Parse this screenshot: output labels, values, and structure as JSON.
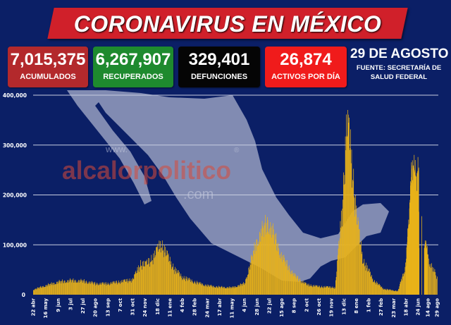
{
  "header": {
    "title": "CORONAVIRUS EN MÉXICO"
  },
  "stats": [
    {
      "value": "7,015,375",
      "label": "ACUMULADOS",
      "color": "#b3292c"
    },
    {
      "value": "6,267,907",
      "label": "RECUPERADOS",
      "color": "#1e8a2e"
    },
    {
      "value": "329,401",
      "label": "DEFUNCIONES",
      "color": "#050505"
    },
    {
      "value": "26,874",
      "label": "ACTIVOS POR DÍA",
      "color": "#f01b1b"
    }
  ],
  "date": {
    "label": "29 DE AGOSTO",
    "source": "FUENTE: SECRETARÍA DE SALUD FEDERAL"
  },
  "watermark": {
    "prefix": "www.",
    "name": "alcalorpolitico",
    "suffix": ".com",
    "mark": "®"
  },
  "colors": {
    "background": "#0b1f66",
    "bars": "#e8b21a",
    "grid": "#c8cde0",
    "banner": "#d0202a",
    "map": "#aab0cc"
  },
  "chart_data": {
    "type": "bar",
    "title": "",
    "xlabel": "",
    "ylabel": "",
    "ylim": [
      0,
      400000
    ],
    "grid": true,
    "y_ticks": [
      "0",
      "100,000",
      "200,000",
      "300,000",
      "400,000"
    ],
    "x_ticks": [
      {
        "label": "22 abr",
        "date": "2020-04-22"
      },
      {
        "label": "16 may",
        "date": "2020-05-16"
      },
      {
        "label": "9 jun",
        "date": "2020-06-09"
      },
      {
        "label": "3 jul",
        "date": "2020-07-03"
      },
      {
        "label": "27 jul",
        "date": "2020-07-27"
      },
      {
        "label": "20 ago",
        "date": "2020-08-20"
      },
      {
        "label": "13 sep",
        "date": "2020-09-13"
      },
      {
        "label": "7 oct",
        "date": "2020-10-07"
      },
      {
        "label": "31 oct",
        "date": "2020-10-31"
      },
      {
        "label": "24 nov",
        "date": "2020-11-24"
      },
      {
        "label": "18 dic",
        "date": "2020-12-18"
      },
      {
        "label": "11 ene",
        "date": "2021-01-11"
      },
      {
        "label": "4 feb",
        "date": "2021-02-04"
      },
      {
        "label": "28 feb",
        "date": "2021-02-28"
      },
      {
        "label": "24 mar",
        "date": "2021-03-24"
      },
      {
        "label": "17 abr",
        "date": "2021-04-17"
      },
      {
        "label": "11 may",
        "date": "2021-05-11"
      },
      {
        "label": "4 jun",
        "date": "2021-06-04"
      },
      {
        "label": "28 jun",
        "date": "2021-06-28"
      },
      {
        "label": "22 jul",
        "date": "2021-07-22"
      },
      {
        "label": "15 ago",
        "date": "2021-08-15"
      },
      {
        "label": "8 sep",
        "date": "2021-09-08"
      },
      {
        "label": "2 oct",
        "date": "2021-10-02"
      },
      {
        "label": "26 oct",
        "date": "2021-10-26"
      },
      {
        "label": "19 nov",
        "date": "2021-11-19"
      },
      {
        "label": "13 dic",
        "date": "2021-12-13"
      },
      {
        "label": "8 ene",
        "date": "2022-01-08"
      },
      {
        "label": "1 feb",
        "date": "2022-02-01"
      },
      {
        "label": "27 feb",
        "date": "2022-02-27"
      },
      {
        "label": "23 mar",
        "date": "2022-03-23"
      },
      {
        "label": "18 abr",
        "date": "2022-04-18"
      },
      {
        "label": "24 jun",
        "date": "2022-06-24"
      },
      {
        "label": "14 ago",
        "date": "2022-08-14"
      },
      {
        "label": "29 ago",
        "date": "2022-08-29"
      }
    ],
    "series": [
      {
        "points": [
          [
            "2020-04-22",
            10000
          ],
          [
            "2020-05-16",
            18000
          ],
          [
            "2020-06-09",
            25000
          ],
          [
            "2020-07-03",
            28000
          ],
          [
            "2020-07-27",
            27000
          ],
          [
            "2020-08-20",
            22000
          ],
          [
            "2020-09-13",
            22000
          ],
          [
            "2020-10-07",
            26000
          ],
          [
            "2020-10-31",
            30000
          ],
          [
            "2020-11-15",
            62000
          ],
          [
            "2020-11-24",
            60000
          ],
          [
            "2020-12-10",
            75000
          ],
          [
            "2020-12-24",
            103000
          ],
          [
            "2021-01-05",
            80000
          ],
          [
            "2021-01-20",
            50000
          ],
          [
            "2021-02-04",
            35000
          ],
          [
            "2021-02-28",
            25000
          ],
          [
            "2021-03-24",
            18000
          ],
          [
            "2021-04-17",
            15000
          ],
          [
            "2021-05-11",
            14000
          ],
          [
            "2021-06-04",
            22000
          ],
          [
            "2021-06-29",
            110000
          ],
          [
            "2021-07-19",
            145000
          ],
          [
            "2021-07-30",
            120000
          ],
          [
            "2021-08-15",
            75000
          ],
          [
            "2021-09-08",
            38000
          ],
          [
            "2021-10-02",
            20000
          ],
          [
            "2021-10-26",
            16000
          ],
          [
            "2021-11-19",
            15000
          ],
          [
            "2021-11-26",
            14000
          ],
          [
            "2021-12-09",
            167000
          ],
          [
            "2021-12-19",
            340000
          ],
          [
            "2021-12-26",
            308000
          ],
          [
            "2022-01-07",
            167000
          ],
          [
            "2022-01-21",
            68000
          ],
          [
            "2022-02-11",
            28000
          ],
          [
            "2022-03-05",
            11000
          ],
          [
            "2022-04-01",
            7000
          ],
          [
            "2022-04-16",
            54000
          ],
          [
            "2022-05-04",
            150000
          ],
          [
            "2022-05-23",
            252000
          ],
          [
            "2022-06-12",
            223000
          ],
          [
            "2022-06-27",
            238000
          ],
          [
            "2022-06-30",
            0
          ],
          [
            "2022-07-12",
            0
          ],
          [
            "2022-07-13",
            167000
          ],
          [
            "2022-07-14",
            0
          ],
          [
            "2022-07-25",
            0
          ],
          [
            "2022-07-26",
            106000
          ],
          [
            "2022-08-11",
            82000
          ],
          [
            "2022-08-29",
            33000
          ]
        ]
      }
    ]
  }
}
